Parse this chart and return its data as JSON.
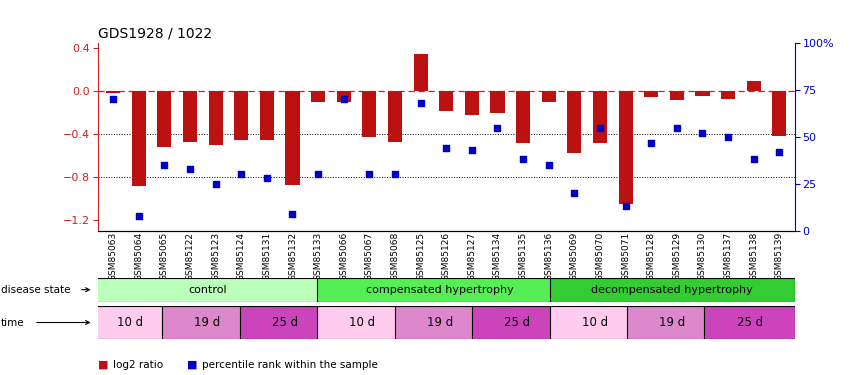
{
  "title": "GDS1928 / 1022",
  "samples": [
    "GSM85063",
    "GSM85064",
    "GSM85065",
    "GSM85122",
    "GSM85123",
    "GSM85124",
    "GSM85131",
    "GSM85132",
    "GSM85133",
    "GSM85066",
    "GSM85067",
    "GSM85068",
    "GSM85125",
    "GSM85126",
    "GSM85127",
    "GSM85134",
    "GSM85135",
    "GSM85136",
    "GSM85069",
    "GSM85070",
    "GSM85071",
    "GSM85128",
    "GSM85129",
    "GSM85130",
    "GSM85137",
    "GSM85138",
    "GSM85139"
  ],
  "log2_ratio": [
    -0.02,
    -0.88,
    -0.52,
    -0.47,
    -0.5,
    -0.45,
    -0.45,
    -0.87,
    -0.1,
    -0.1,
    -0.43,
    -0.47,
    0.35,
    -0.18,
    -0.22,
    -0.2,
    -0.48,
    -0.1,
    -0.58,
    -0.48,
    -1.05,
    -0.05,
    -0.08,
    -0.04,
    -0.07,
    0.1,
    -0.42
  ],
  "percentile": [
    70,
    8,
    35,
    33,
    25,
    30,
    28,
    9,
    30,
    70,
    30,
    30,
    68,
    44,
    43,
    55,
    38,
    35,
    20,
    55,
    13,
    47,
    55,
    52,
    50,
    38,
    42
  ],
  "time_groups": [
    {
      "label": "10 d",
      "start": 0,
      "end": 2,
      "color": "#ffccee"
    },
    {
      "label": "19 d",
      "start": 3,
      "end": 5,
      "color": "#dd88cc"
    },
    {
      "label": "25 d",
      "start": 6,
      "end": 8,
      "color": "#cc44bb"
    },
    {
      "label": "10 d",
      "start": 9,
      "end": 11,
      "color": "#ffccee"
    },
    {
      "label": "19 d",
      "start": 12,
      "end": 14,
      "color": "#dd88cc"
    },
    {
      "label": "25 d",
      "start": 15,
      "end": 17,
      "color": "#cc44bb"
    },
    {
      "label": "10 d",
      "start": 18,
      "end": 20,
      "color": "#ffccee"
    },
    {
      "label": "19 d",
      "start": 21,
      "end": 23,
      "color": "#dd88cc"
    },
    {
      "label": "25 d",
      "start": 24,
      "end": 26,
      "color": "#cc44bb"
    }
  ],
  "disease_state_groups": [
    {
      "label": "control",
      "start": 0,
      "end": 8,
      "color": "#bbffbb"
    },
    {
      "label": "compensated hypertrophy",
      "start": 9,
      "end": 17,
      "color": "#55ee55"
    },
    {
      "label": "decompensated hypertrophy",
      "start": 18,
      "end": 26,
      "color": "#33cc33"
    }
  ],
  "bar_color": "#bb1111",
  "dot_color": "#0000cc",
  "ylim_left": [
    -1.3,
    0.45
  ],
  "ylim_right": [
    0,
    100
  ],
  "yticks_left": [
    -1.2,
    -0.8,
    -0.4,
    0.0,
    0.4
  ],
  "yticks_right": [
    0,
    25,
    50,
    75,
    100
  ],
  "ytick_right_labels": [
    "0",
    "25",
    "50",
    "75",
    "100%"
  ]
}
